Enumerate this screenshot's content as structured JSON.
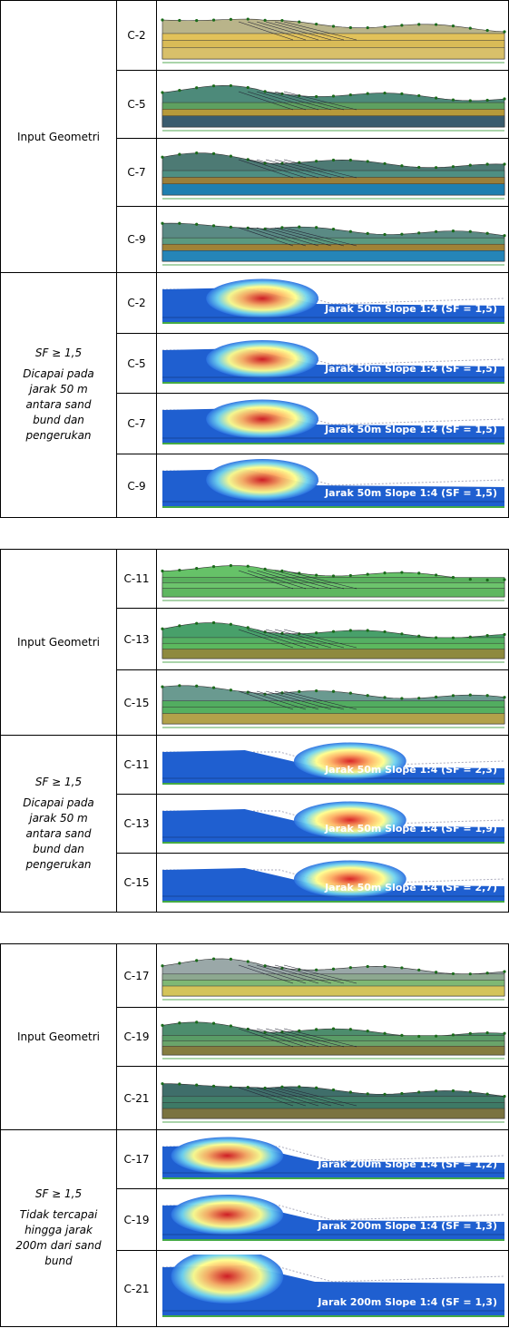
{
  "tables": [
    {
      "geometry_label": "Input Geometri",
      "sf_label": "SF ≥ 1,5",
      "sf_note": "Dicapai pada jarak 50 m antara sand bund dan pengerukan",
      "geometry_rows": [
        {
          "section": "C-2"
        },
        {
          "section": "C-5"
        },
        {
          "section": "C-7"
        },
        {
          "section": "C-9"
        }
      ],
      "result_rows": [
        {
          "section": "C-2",
          "caption": "Jarak 50m Slope 1:4 (SF = 1,5)"
        },
        {
          "section": "C-5",
          "caption": "Jarak 50m Slope 1:4 (SF = 1,5)"
        },
        {
          "section": "C-7",
          "caption": "Jarak 50m Slope 1:4 (SF = 1,5)"
        },
        {
          "section": "C-9",
          "caption": "Jarak 50m Slope 1:4 (SF = 1,5)"
        }
      ]
    },
    {
      "geometry_label": "Input Geometri",
      "sf_label": "SF ≥ 1,5",
      "sf_note": "Dicapai pada jarak 50 m antara sand bund dan pengerukan",
      "geometry_rows": [
        {
          "section": "C-11"
        },
        {
          "section": "C-13"
        },
        {
          "section": "C-15"
        }
      ],
      "result_rows": [
        {
          "section": "C-11",
          "caption": "Jarak 50m Slope 1:4 (SF = 2,3)"
        },
        {
          "section": "C-13",
          "caption": "Jarak 50m Slope 1:4 (SF = 1,9)"
        },
        {
          "section": "C-15",
          "caption": "Jarak 50m Slope 1:4 (SF = 2,7)"
        }
      ]
    },
    {
      "geometry_label": "Input Geometri",
      "sf_label": "SF ≥ 1,5",
      "sf_note": "Tidak tercapai hingga jarak 200m dari sand bund",
      "geometry_rows": [
        {
          "section": "C-17"
        },
        {
          "section": "C-19"
        },
        {
          "section": "C-21"
        }
      ],
      "result_rows": [
        {
          "section": "C-17",
          "caption": "Jarak 200m Slope 1:4 (SF = 1,2)"
        },
        {
          "section": "C-19",
          "caption": "Jarak 200m Slope 1:4 (SF = 1,3)"
        },
        {
          "section": "C-21",
          "caption": "Jarak 200m Slope 1:4 (SF = 1,3)"
        }
      ]
    }
  ]
}
